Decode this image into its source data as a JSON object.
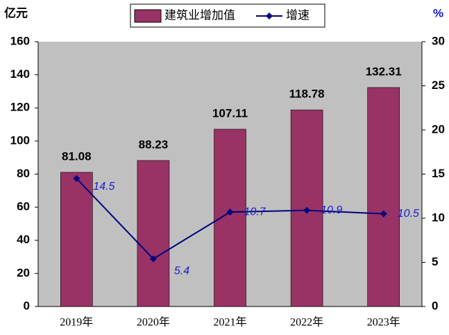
{
  "chart_data": {
    "type": "bar",
    "y_label": "亿元",
    "y2_label": "%",
    "categories": [
      "2019年",
      "2020年",
      "2021年",
      "2022年",
      "2023年"
    ],
    "series": [
      {
        "name": "建筑业增加值",
        "color": "#993366",
        "values": [
          81.08,
          88.23,
          107.11,
          118.78,
          132.31
        ]
      },
      {
        "name": "增速",
        "type": "line",
        "axis": "y2",
        "color": "#000080",
        "values": [
          14.5,
          5.4,
          10.7,
          10.9,
          10.5
        ]
      }
    ],
    "ylim": [
      0,
      160
    ],
    "yticks": [
      0,
      20,
      40,
      60,
      80,
      100,
      120,
      140,
      160
    ],
    "y2lim": [
      0,
      30
    ],
    "y2ticks": [
      0,
      5,
      10,
      15,
      20,
      25,
      30
    ],
    "background": "#c0c0c0"
  }
}
